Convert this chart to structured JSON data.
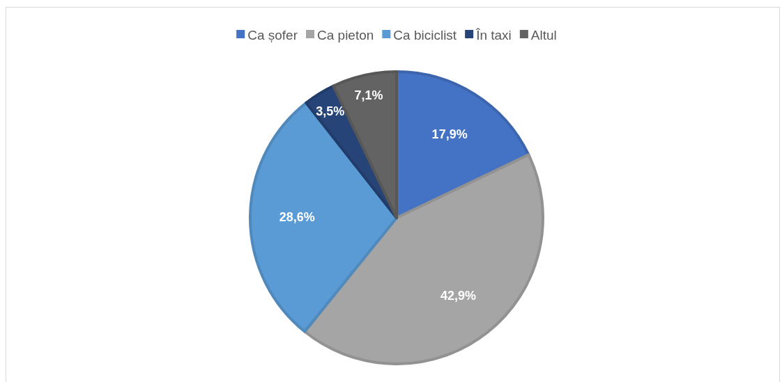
{
  "chart_data": {
    "type": "pie",
    "categories": [
      "Ca șofer",
      "Ca pieton",
      "Ca biciclist",
      "În taxi",
      "Altul"
    ],
    "values": [
      17.9,
      42.9,
      28.6,
      3.5,
      7.1
    ],
    "colors": [
      "#4472c4",
      "#a5a5a5",
      "#5b9bd5",
      "#264478",
      "#636363"
    ],
    "value_labels": [
      "17,9%",
      "42,9%",
      "28,6%",
      "3,5%",
      "7,1%"
    ],
    "legend": "top"
  }
}
